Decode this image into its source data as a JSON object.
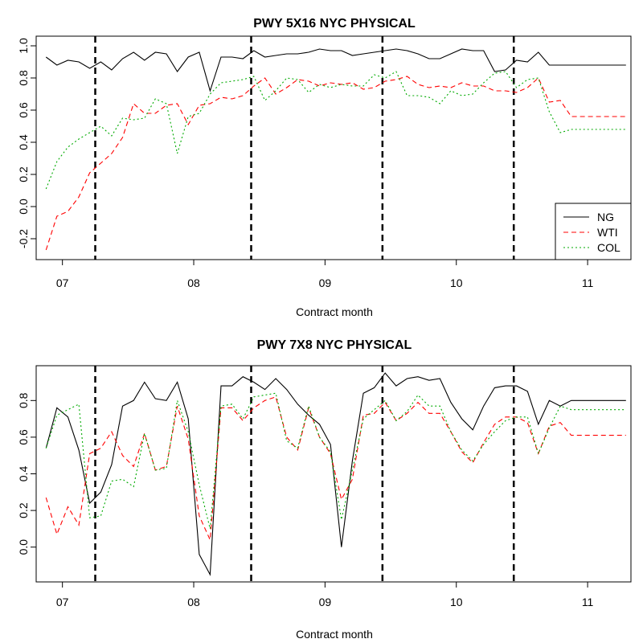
{
  "chart_data": [
    {
      "type": "line",
      "title": "PWY 5X16 NYC PHYSICAL",
      "xlabel": "Contract month",
      "ylabel": "",
      "xlim": [
        2006.8,
        2011.33
      ],
      "ylim": [
        -0.33,
        1.06
      ],
      "x_ticks": [
        2007,
        2008,
        2009,
        2010,
        2011
      ],
      "x_tick_labels": [
        "07",
        "08",
        "09",
        "10",
        "11"
      ],
      "y_ticks": [
        -0.2,
        0.0,
        0.2,
        0.4,
        0.6,
        0.8,
        1.0
      ],
      "y_tick_labels": [
        "-0.2",
        "0.0",
        "0.2",
        "0.4",
        "0.6",
        "0.8",
        "1.0"
      ],
      "vlines": [
        2007.25,
        2008.4375,
        2009.4375,
        2010.4375
      ],
      "legend": {
        "position": "bottom-right"
      },
      "x": [
        2006.875,
        2006.958,
        2007.042,
        2007.125,
        2007.208,
        2007.292,
        2007.375,
        2007.458,
        2007.542,
        2007.625,
        2007.708,
        2007.792,
        2007.875,
        2007.958,
        2008.042,
        2008.125,
        2008.208,
        2008.292,
        2008.375,
        2008.458,
        2008.542,
        2008.625,
        2008.708,
        2008.792,
        2008.875,
        2008.958,
        2009.042,
        2009.125,
        2009.208,
        2009.292,
        2009.375,
        2009.458,
        2009.542,
        2009.625,
        2009.708,
        2009.792,
        2009.875,
        2009.958,
        2010.042,
        2010.125,
        2010.208,
        2010.292,
        2010.375,
        2010.458,
        2010.542,
        2010.625,
        2010.708,
        2010.792,
        2010.875,
        2010.958,
        2011.042,
        2011.125,
        2011.208,
        2011.292
      ],
      "series": [
        {
          "name": "NG",
          "color": "#000000",
          "dash": "solid",
          "values": [
            0.93,
            0.88,
            0.91,
            0.9,
            0.86,
            0.9,
            0.85,
            0.92,
            0.96,
            0.91,
            0.96,
            0.95,
            0.84,
            0.93,
            0.96,
            0.72,
            0.93,
            0.93,
            0.92,
            0.97,
            0.93,
            0.94,
            0.95,
            0.95,
            0.96,
            0.98,
            0.97,
            0.97,
            0.94,
            0.95,
            0.96,
            0.97,
            0.98,
            0.97,
            0.95,
            0.92,
            0.92,
            0.95,
            0.98,
            0.97,
            0.97,
            0.84,
            0.85,
            0.91,
            0.9,
            0.96,
            0.88,
            0.88,
            0.88,
            0.88,
            0.88,
            0.88,
            0.88,
            0.88
          ]
        },
        {
          "name": "WTI",
          "color": "#ff0000",
          "dash": "6,4",
          "values": [
            -0.27,
            -0.06,
            -0.03,
            0.06,
            0.21,
            0.27,
            0.33,
            0.43,
            0.64,
            0.58,
            0.58,
            0.63,
            0.64,
            0.51,
            0.63,
            0.64,
            0.68,
            0.67,
            0.69,
            0.75,
            0.8,
            0.7,
            0.74,
            0.79,
            0.78,
            0.75,
            0.77,
            0.76,
            0.77,
            0.73,
            0.74,
            0.78,
            0.79,
            0.81,
            0.76,
            0.74,
            0.75,
            0.74,
            0.77,
            0.75,
            0.75,
            0.72,
            0.72,
            0.71,
            0.74,
            0.8,
            0.65,
            0.66,
            0.56,
            0.56,
            0.56,
            0.56,
            0.56,
            0.56
          ]
        },
        {
          "name": "COL",
          "color": "#00aa00",
          "dash": "2,3",
          "values": [
            0.11,
            0.28,
            0.37,
            0.42,
            0.46,
            0.5,
            0.44,
            0.55,
            0.54,
            0.55,
            0.67,
            0.64,
            0.33,
            0.56,
            0.58,
            0.7,
            0.77,
            0.78,
            0.79,
            0.81,
            0.66,
            0.72,
            0.8,
            0.79,
            0.71,
            0.76,
            0.74,
            0.76,
            0.75,
            0.75,
            0.82,
            0.8,
            0.84,
            0.69,
            0.69,
            0.68,
            0.64,
            0.72,
            0.69,
            0.7,
            0.77,
            0.83,
            0.84,
            0.74,
            0.79,
            0.8,
            0.59,
            0.46,
            0.48,
            0.48,
            0.48,
            0.48,
            0.48,
            0.48
          ]
        }
      ]
    },
    {
      "type": "line",
      "title": "PWY 7X8 NYC PHYSICAL",
      "xlabel": "Contract month",
      "ylabel": "",
      "xlim": [
        2006.8,
        2011.33
      ],
      "ylim": [
        -0.19,
        0.99
      ],
      "x_ticks": [
        2007,
        2008,
        2009,
        2010,
        2011
      ],
      "x_tick_labels": [
        "07",
        "08",
        "09",
        "10",
        "11"
      ],
      "y_ticks": [
        0.0,
        0.2,
        0.4,
        0.6,
        0.8
      ],
      "y_tick_labels": [
        "0.0",
        "0.2",
        "0.4",
        "0.6",
        "0.8"
      ],
      "vlines": [
        2007.25,
        2008.4375,
        2009.4375,
        2010.4375
      ],
      "x": [
        2006.875,
        2006.958,
        2007.042,
        2007.125,
        2007.208,
        2007.292,
        2007.375,
        2007.458,
        2007.542,
        2007.625,
        2007.708,
        2007.792,
        2007.875,
        2007.958,
        2008.042,
        2008.125,
        2008.208,
        2008.292,
        2008.375,
        2008.458,
        2008.542,
        2008.625,
        2008.708,
        2008.792,
        2008.875,
        2008.958,
        2009.042,
        2009.125,
        2009.208,
        2009.292,
        2009.375,
        2009.458,
        2009.542,
        2009.625,
        2009.708,
        2009.792,
        2009.875,
        2009.958,
        2010.042,
        2010.125,
        2010.208,
        2010.292,
        2010.375,
        2010.458,
        2010.542,
        2010.625,
        2010.708,
        2010.792,
        2010.875,
        2010.958,
        2011.042,
        2011.125,
        2011.208,
        2011.292
      ],
      "series": [
        {
          "name": "NG",
          "color": "#000000",
          "dash": "solid",
          "values": [
            0.54,
            0.76,
            0.71,
            0.53,
            0.24,
            0.3,
            0.45,
            0.77,
            0.8,
            0.9,
            0.81,
            0.8,
            0.9,
            0.7,
            -0.04,
            -0.15,
            0.88,
            0.88,
            0.93,
            0.9,
            0.86,
            0.92,
            0.86,
            0.78,
            0.72,
            0.67,
            0.56,
            0.0,
            0.47,
            0.84,
            0.87,
            0.95,
            0.88,
            0.92,
            0.93,
            0.91,
            0.92,
            0.79,
            0.7,
            0.64,
            0.77,
            0.87,
            0.88,
            0.88,
            0.85,
            0.67,
            0.8,
            0.77,
            0.8,
            0.8,
            0.8,
            0.8,
            0.8,
            0.8
          ]
        },
        {
          "name": "WTI",
          "color": "#ff0000",
          "dash": "6,4",
          "values": [
            0.27,
            0.07,
            0.22,
            0.12,
            0.51,
            0.54,
            0.63,
            0.5,
            0.44,
            0.62,
            0.42,
            0.44,
            0.77,
            0.59,
            0.17,
            0.04,
            0.76,
            0.76,
            0.69,
            0.76,
            0.8,
            0.82,
            0.6,
            0.53,
            0.76,
            0.6,
            0.51,
            0.26,
            0.37,
            0.72,
            0.73,
            0.79,
            0.69,
            0.73,
            0.79,
            0.73,
            0.73,
            0.63,
            0.52,
            0.46,
            0.57,
            0.67,
            0.71,
            0.71,
            0.68,
            0.51,
            0.66,
            0.68,
            0.61,
            0.61,
            0.61,
            0.61,
            0.61,
            0.61
          ]
        },
        {
          "name": "COL",
          "color": "#00aa00",
          "dash": "2,3",
          "values": [
            0.54,
            0.72,
            0.75,
            0.78,
            0.16,
            0.17,
            0.36,
            0.37,
            0.33,
            0.62,
            0.42,
            0.43,
            0.8,
            0.63,
            0.34,
            0.1,
            0.77,
            0.78,
            0.7,
            0.82,
            0.83,
            0.84,
            0.58,
            0.54,
            0.77,
            0.6,
            0.52,
            0.15,
            0.42,
            0.7,
            0.75,
            0.8,
            0.69,
            0.74,
            0.83,
            0.77,
            0.77,
            0.63,
            0.53,
            0.47,
            0.56,
            0.63,
            0.69,
            0.71,
            0.71,
            0.51,
            0.65,
            0.77,
            0.75,
            0.75,
            0.75,
            0.75,
            0.75,
            0.75
          ]
        }
      ]
    }
  ]
}
